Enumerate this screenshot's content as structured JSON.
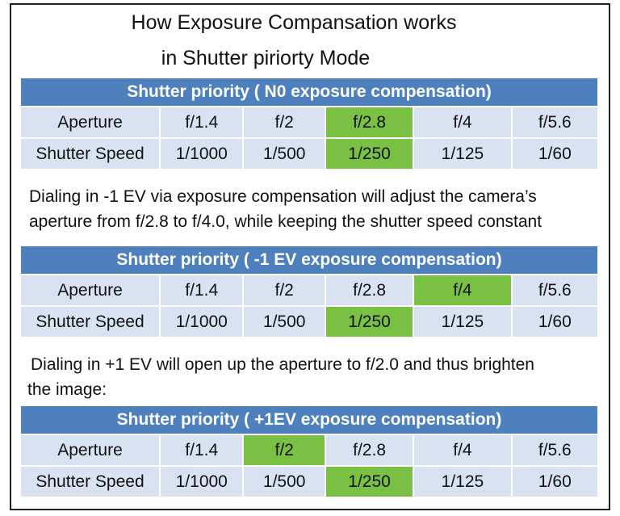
{
  "title": {
    "line1": "How Exposure Compansation works",
    "line2": "in Shutter piriorty Mode"
  },
  "tables": [
    {
      "header": "Shutter priority  ( N0 exposure compensation)",
      "aperture_label": "Aperture",
      "aperture": [
        "f/1.4",
        "f/2",
        "f/2.8",
        "f/4",
        "f/5.6"
      ],
      "shutter_label": "Shutter Speed",
      "shutter": [
        "1/1000",
        "1/500",
        "1/250",
        "1/125",
        "1/60"
      ],
      "highlight_aperture_index": 2,
      "highlight_shutter_index": 2
    },
    {
      "header": "Shutter priority  ( -1 EV exposure compensation)",
      "aperture_label": "Aperture",
      "aperture": [
        "f/1.4",
        "f/2",
        "f/2.8",
        "f/4",
        "f/5.6"
      ],
      "shutter_label": "Shutter Speed",
      "shutter": [
        "1/1000",
        "1/500",
        "1/250",
        "1/125",
        "1/60"
      ],
      "highlight_aperture_index": 3,
      "highlight_shutter_index": 2
    },
    {
      "header": "Shutter priority  ( +1EV exposure compensation)",
      "aperture_label": "Aperture",
      "aperture": [
        "f/1.4",
        "f/2",
        "f/2.8",
        "f/4",
        "f/5.6"
      ],
      "shutter_label": "Shutter Speed",
      "shutter": [
        "1/1000",
        "1/500",
        "1/250",
        "1/125",
        "1/60"
      ],
      "highlight_aperture_index": 1,
      "highlight_shutter_index": 2
    }
  ],
  "paragraphs": {
    "p1_line1": "Dialing in -1 EV via exposure compensation will adjust the camera’s",
    "p1_line2": "aperture from f/2.8 to f/4.0, while keeping the shutter speed constant",
    "p2_line1": "Dialing in +1 EV will open up the aperture to f/2.0 and thus brighten",
    "p2_line2": "the image:"
  },
  "colors": {
    "header_bg": "#4f80be",
    "cell_bg": "#d8e2f1",
    "highlight": "#7ac143"
  }
}
